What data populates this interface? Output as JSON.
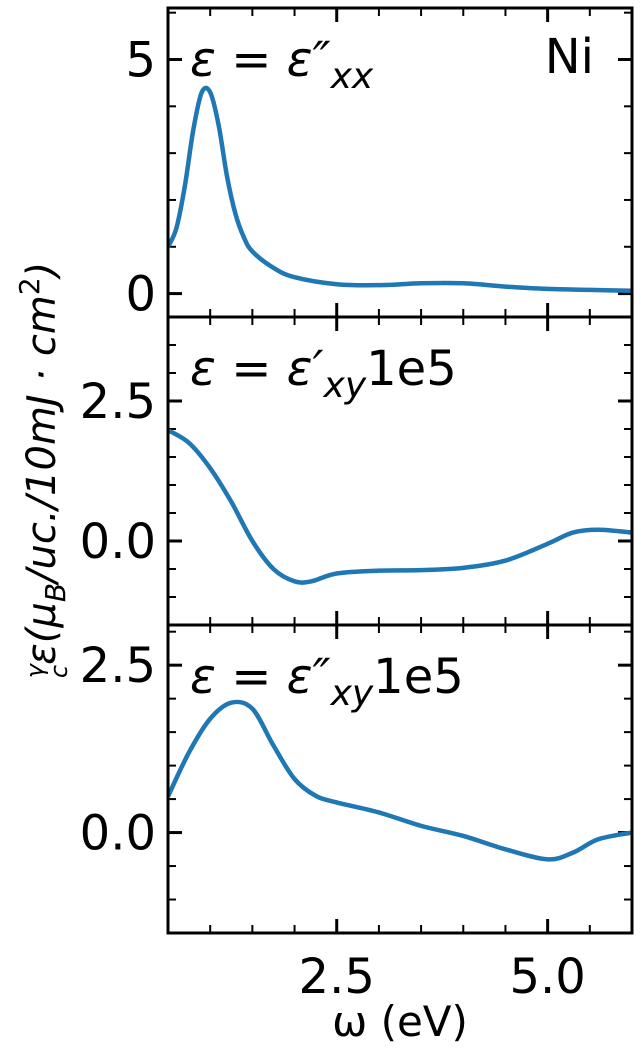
{
  "chart_data": [
    {
      "type": "line",
      "annotation": [
        "ε = ε″",
        "xx",
        ""
      ],
      "label": "Ni",
      "x": [
        0.5,
        0.6,
        0.7,
        0.8,
        0.9,
        1.0,
        1.1,
        1.2,
        1.3,
        1.4,
        1.5,
        1.75,
        2.0,
        2.5,
        3.0,
        3.5,
        4.0,
        4.5,
        5.0,
        5.5,
        6.0
      ],
      "series": [
        {
          "color": "#1f77b4",
          "values": [
            1.0,
            1.4,
            2.3,
            3.5,
            4.3,
            4.3,
            3.6,
            2.5,
            1.7,
            1.2,
            0.9,
            0.55,
            0.35,
            0.2,
            0.18,
            0.22,
            0.22,
            0.15,
            0.1,
            0.08,
            0.06
          ]
        }
      ],
      "xlim": [
        0.5,
        6.0
      ],
      "xticks": [
        2.5,
        5.0
      ],
      "xminorticks": [
        1.0,
        1.5,
        2.0,
        3.0,
        3.5,
        4.0,
        4.5,
        5.5
      ],
      "show_xticklabels": false,
      "ylim": [
        -0.5,
        6.1
      ],
      "yticks": [
        0,
        5
      ],
      "yminorticks": [
        1,
        2,
        3,
        4,
        6
      ]
    },
    {
      "type": "line",
      "annotation": [
        "ε = ε′",
        "xy",
        "1e5"
      ],
      "x": [
        0.5,
        0.75,
        1.0,
        1.25,
        1.5,
        1.75,
        2.0,
        2.2,
        2.5,
        3.0,
        3.5,
        4.0,
        4.5,
        5.0,
        5.3,
        5.6,
        6.0
      ],
      "series": [
        {
          "color": "#1f77b4",
          "values": [
            1.98,
            1.75,
            1.3,
            0.7,
            0.0,
            -0.5,
            -0.72,
            -0.72,
            -0.58,
            -0.53,
            -0.52,
            -0.48,
            -0.35,
            -0.05,
            0.15,
            0.2,
            0.15
          ]
        }
      ],
      "xlim": [
        0.5,
        6.0
      ],
      "xticks": [
        2.5,
        5.0
      ],
      "xminorticks": [
        1.0,
        1.5,
        2.0,
        3.0,
        3.5,
        4.0,
        4.5,
        5.5
      ],
      "show_xticklabels": false,
      "ylim": [
        -1.5,
        4.0
      ],
      "yticks": [
        {
          "value": 0,
          "label": "0.0"
        },
        2.5
      ],
      "yminorticks": [
        -1.0,
        -0.5,
        0.5,
        1.0,
        1.5,
        2.0,
        3.0,
        3.5
      ]
    },
    {
      "type": "line",
      "annotation": [
        "ε = ε″",
        "xy",
        "1e5"
      ],
      "x": [
        0.5,
        0.75,
        1.0,
        1.25,
        1.5,
        1.75,
        2.0,
        2.25,
        2.5,
        3.0,
        3.5,
        4.0,
        4.5,
        5.0,
        5.3,
        5.6,
        6.0
      ],
      "series": [
        {
          "color": "#1f77b4",
          "values": [
            0.54,
            1.2,
            1.7,
            1.94,
            1.85,
            1.3,
            0.8,
            0.55,
            0.45,
            0.3,
            0.1,
            -0.05,
            -0.25,
            -0.4,
            -0.3,
            -0.1,
            0.0
          ]
        }
      ],
      "xlim": [
        0.5,
        6.0
      ],
      "xticks": [
        2.5,
        {
          "value": 5,
          "label": "5.0"
        }
      ],
      "xminorticks": [
        1.0,
        1.5,
        2.0,
        3.0,
        3.5,
        4.0,
        4.5,
        5.5
      ],
      "show_xticklabels": true,
      "xlabel": "ω (eV)",
      "ylim": [
        -1.5,
        3.1
      ],
      "yticks": [
        {
          "value": 0,
          "label": "0.0"
        },
        2.5
      ],
      "yminorticks": [
        -1.0,
        -0.5,
        0.5,
        1.0,
        1.5,
        2.0,
        3.0
      ]
    }
  ],
  "ylabel": [
    "γ",
    "c",
    "ε(μ",
    "B",
    "/uc./10mJ · cm",
    "2",
    ")"
  ]
}
